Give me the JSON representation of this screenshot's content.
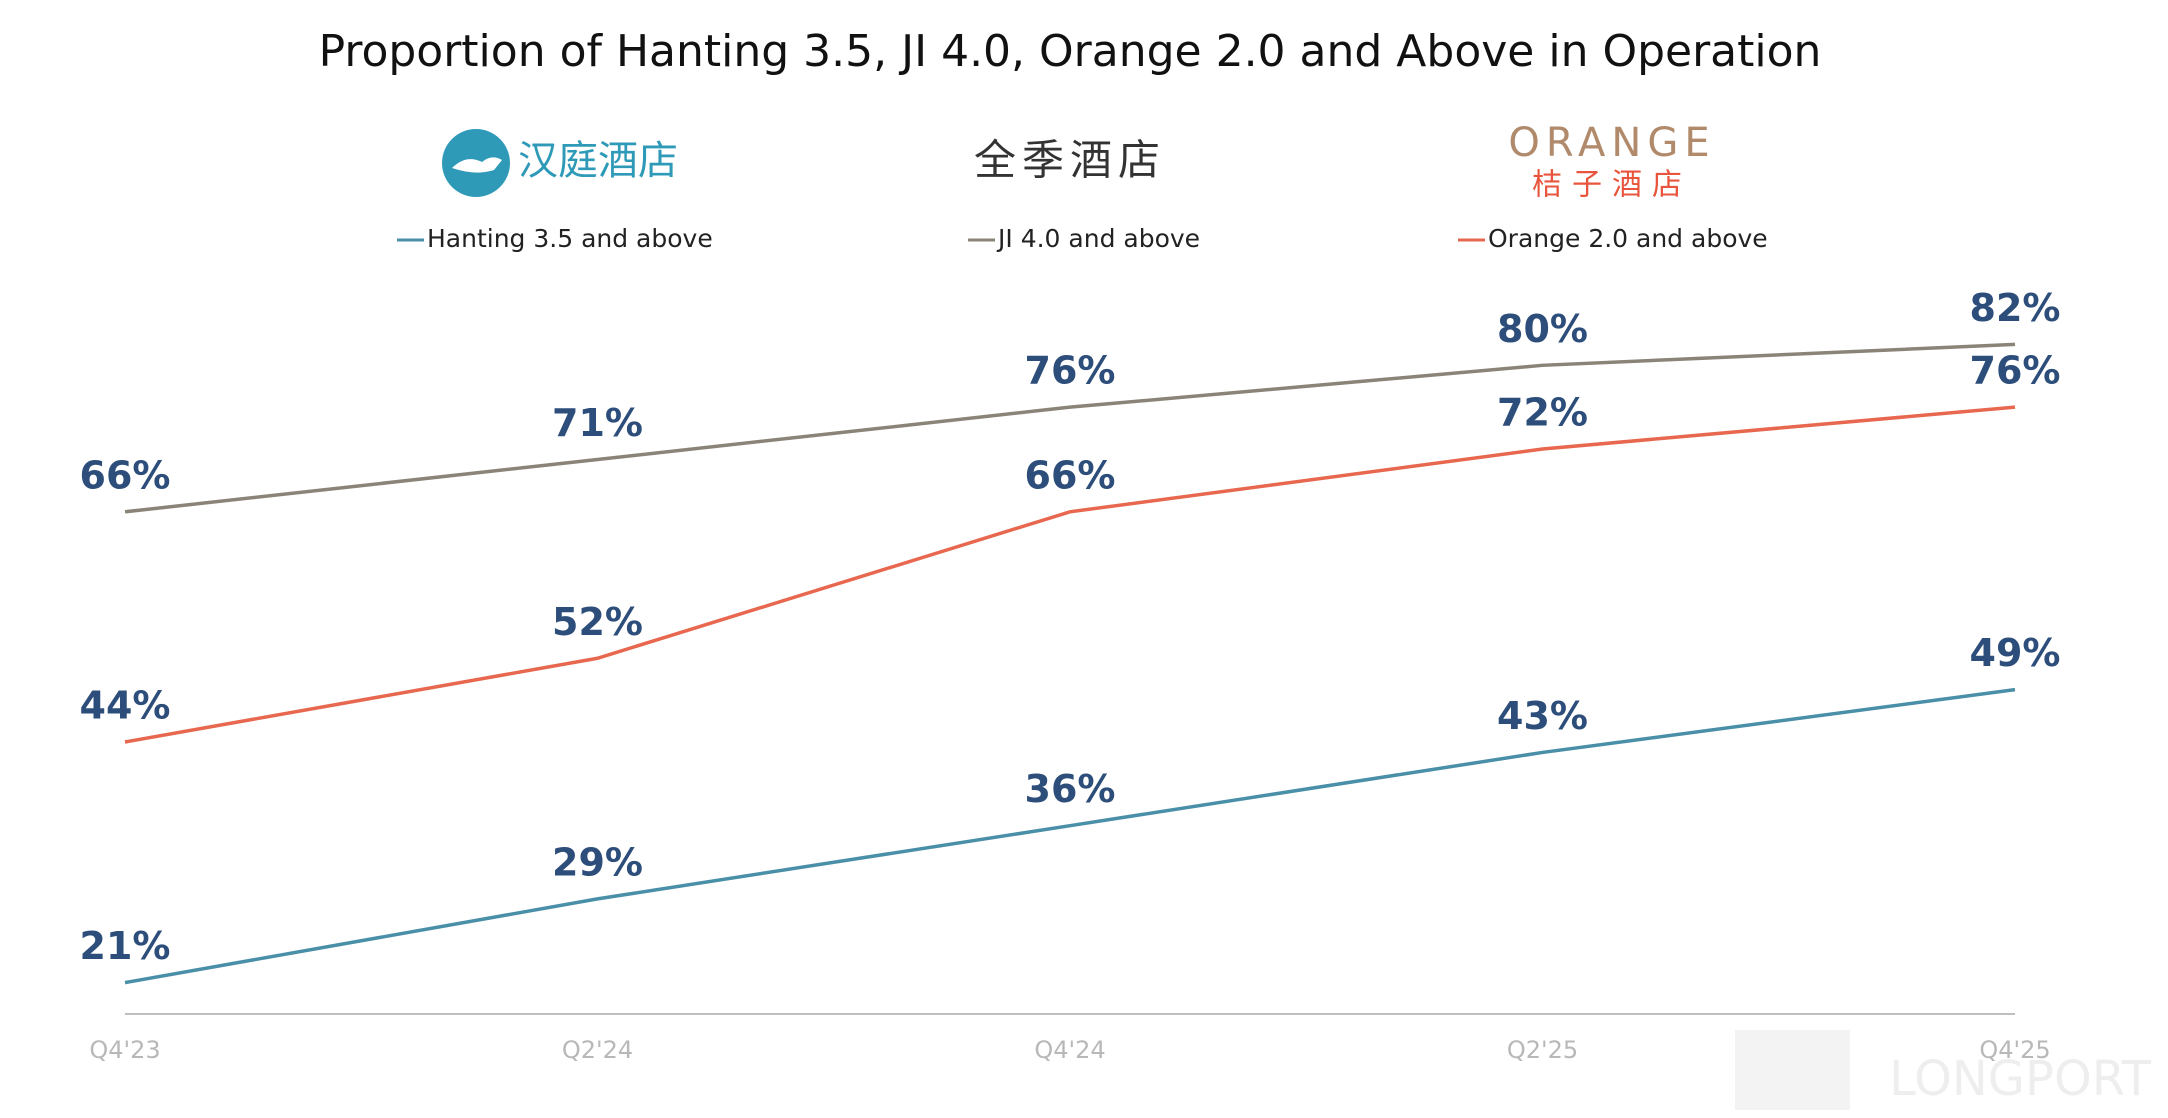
{
  "chart_data": {
    "type": "line",
    "title": "Proportion of Hanting 3.5, JI 4.0, Orange 2.0 and Above in Operation",
    "brand_logos": [
      "汉庭酒店",
      "全季酒店",
      "ORANGE",
      "桔子酒店"
    ],
    "watermark": "LONGPORT",
    "categories": [
      "Q4'23",
      "Q2'24",
      "Q4'24",
      "Q2'25",
      "Q4'25"
    ],
    "ylim": [
      18,
      85
    ],
    "series": [
      {
        "name": "Hanting 3.5 and above",
        "color": "#4a8fa8",
        "values": [
          21,
          29,
          36,
          43,
          49
        ],
        "value_labels": [
          "21%",
          "29%",
          "36%",
          "43%",
          "49%"
        ]
      },
      {
        "name": "JI 4.0 and above",
        "color": "#8a8478",
        "values": [
          66,
          71,
          76,
          80,
          82
        ],
        "value_labels": [
          "66%",
          "71%",
          "76%",
          "80%",
          "82%"
        ]
      },
      {
        "name": "Orange 2.0 and above",
        "color": "#e8674f",
        "values": [
          44,
          52,
          66,
          72,
          76
        ],
        "value_labels": [
          "44%",
          "52%",
          "66%",
          "72%",
          "76%"
        ]
      }
    ]
  }
}
